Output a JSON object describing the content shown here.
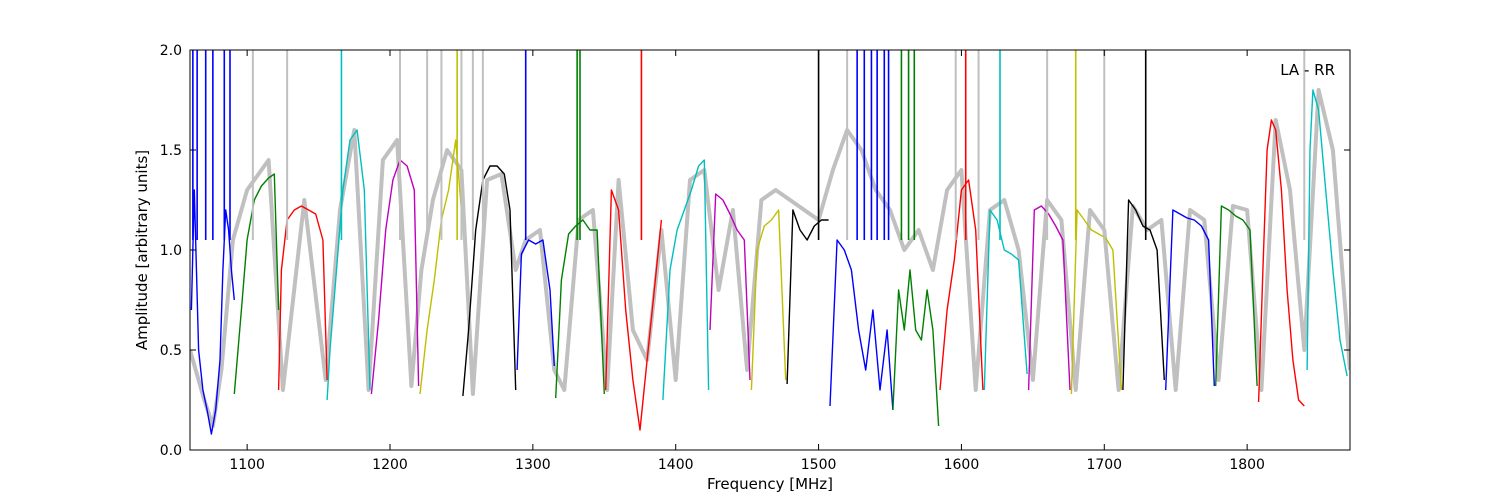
{
  "chart_data": {
    "type": "line",
    "xlabel": "Frequency [MHz]",
    "ylabel": "Amplitude [arbitrary units]",
    "annotation": "LA - RR",
    "xlim": [
      1060,
      1872
    ],
    "ylim": [
      0.0,
      2.0
    ],
    "xticks": [
      1100,
      1200,
      1300,
      1400,
      1500,
      1600,
      1700,
      1800
    ],
    "yticks": [
      0.0,
      0.5,
      1.0,
      1.5,
      2.0
    ],
    "ytick_labels": [
      "0.0",
      "0.5",
      "1.0",
      "1.5",
      "2.0"
    ],
    "grid": false,
    "background": {
      "color": "#c0c0c0",
      "x": [
        1060,
        1070,
        1076,
        1082,
        1090,
        1100,
        1115,
        1125,
        1140,
        1155,
        1165,
        1175,
        1185,
        1195,
        1205,
        1215,
        1222,
        1230,
        1240,
        1250,
        1258,
        1268,
        1278,
        1288,
        1295,
        1305,
        1315,
        1322,
        1332,
        1342,
        1352,
        1360,
        1370,
        1380,
        1390,
        1400,
        1410,
        1420,
        1430,
        1440,
        1450,
        1460,
        1470,
        1480,
        1490,
        1500,
        1510,
        1520,
        1530,
        1540,
        1550,
        1560,
        1570,
        1580,
        1590,
        1600,
        1610,
        1620,
        1630,
        1640,
        1650,
        1660,
        1670,
        1680,
        1690,
        1700,
        1710,
        1720,
        1730,
        1740,
        1750,
        1760,
        1770,
        1780,
        1790,
        1800,
        1810,
        1820,
        1830,
        1840,
        1850,
        1860,
        1872
      ],
      "y": [
        0.5,
        0.25,
        0.12,
        0.4,
        1.05,
        1.3,
        1.45,
        0.3,
        1.25,
        0.35,
        1.2,
        1.6,
        0.3,
        1.45,
        1.55,
        0.32,
        0.9,
        1.25,
        1.5,
        1.4,
        0.28,
        1.35,
        1.38,
        0.9,
        1.05,
        1.1,
        0.4,
        0.3,
        1.15,
        1.2,
        0.3,
        1.35,
        0.6,
        0.45,
        1.1,
        0.35,
        1.35,
        1.4,
        0.8,
        1.2,
        0.4,
        1.25,
        1.3,
        1.25,
        1.2,
        1.15,
        1.4,
        1.6,
        1.5,
        1.3,
        1.2,
        1.0,
        1.1,
        0.9,
        1.3,
        1.4,
        0.3,
        1.2,
        1.25,
        1.0,
        0.35,
        1.25,
        1.15,
        0.3,
        1.2,
        1.1,
        0.3,
        1.22,
        1.1,
        1.15,
        0.3,
        1.2,
        1.15,
        0.35,
        1.22,
        1.2,
        0.3,
        1.65,
        1.3,
        0.5,
        1.8,
        1.5,
        0.4
      ]
    },
    "series": [
      {
        "color": "#0000ff",
        "x": [
          1061,
          1063,
          1066,
          1069,
          1072,
          1075,
          1078,
          1081,
          1083,
          1085,
          1087,
          1089,
          1091
        ],
        "y": [
          0.7,
          1.3,
          0.5,
          0.3,
          0.2,
          0.08,
          0.2,
          0.45,
          0.9,
          1.2,
          1.1,
          0.9,
          0.75
        ]
      },
      {
        "color": "#008000",
        "x": [
          1091,
          1096,
          1100,
          1105,
          1110,
          1115,
          1119,
          1122
        ],
        "y": [
          0.28,
          0.7,
          1.05,
          1.25,
          1.32,
          1.36,
          1.38,
          0.7
        ]
      },
      {
        "color": "#ff0000",
        "x": [
          1122,
          1124,
          1128,
          1133,
          1138,
          1143,
          1148,
          1153,
          1156
        ],
        "y": [
          0.3,
          0.9,
          1.15,
          1.2,
          1.22,
          1.2,
          1.18,
          1.05,
          0.35
        ]
      },
      {
        "color": "#00bfbf",
        "x": [
          1156,
          1158,
          1162,
          1167,
          1172,
          1177,
          1182,
          1186
        ],
        "y": [
          0.25,
          0.5,
          0.85,
          1.3,
          1.55,
          1.6,
          1.3,
          0.3
        ]
      },
      {
        "color": "#bf00bf",
        "x": [
          1187,
          1192,
          1197,
          1202,
          1207,
          1212,
          1217,
          1220
        ],
        "y": [
          0.28,
          0.65,
          1.1,
          1.35,
          1.45,
          1.42,
          1.3,
          0.32
        ]
      },
      {
        "color": "#bfbf00",
        "x": [
          1221,
          1226,
          1231,
          1236,
          1241,
          1246,
          1250
        ],
        "y": [
          0.28,
          0.6,
          0.85,
          1.15,
          1.3,
          1.55,
          1.2
        ]
      },
      {
        "color": "#000000",
        "x": [
          1251,
          1255,
          1260,
          1265,
          1270,
          1275,
          1280,
          1284,
          1288
        ],
        "y": [
          0.27,
          0.6,
          1.1,
          1.35,
          1.42,
          1.42,
          1.38,
          1.2,
          0.3
        ]
      },
      {
        "color": "#0000ff",
        "x": [
          1289,
          1292,
          1297,
          1302,
          1307,
          1312,
          1315
        ],
        "y": [
          0.4,
          0.98,
          1.05,
          1.03,
          1.05,
          0.8,
          0.42
        ]
      },
      {
        "color": "#008000",
        "x": [
          1316,
          1320,
          1325,
          1330,
          1335,
          1340,
          1345,
          1350
        ],
        "y": [
          0.26,
          0.85,
          1.08,
          1.12,
          1.15,
          1.1,
          1.1,
          0.28
        ]
      },
      {
        "color": "#ff0000",
        "x": [
          1351,
          1355,
          1360,
          1365,
          1370,
          1375,
          1380,
          1385,
          1390
        ],
        "y": [
          0.3,
          1.3,
          1.2,
          0.7,
          0.35,
          0.1,
          0.45,
          0.8,
          1.15
        ]
      },
      {
        "color": "#00bfbf",
        "x": [
          1391,
          1396,
          1401,
          1406,
          1411,
          1416,
          1420,
          1423
        ],
        "y": [
          0.25,
          0.9,
          1.1,
          1.2,
          1.3,
          1.42,
          1.45,
          0.3
        ]
      },
      {
        "color": "#bf00bf",
        "x": [
          1424,
          1428,
          1433,
          1438,
          1443,
          1448,
          1452
        ],
        "y": [
          0.6,
          1.28,
          1.25,
          1.18,
          1.1,
          1.05,
          0.35
        ]
      },
      {
        "color": "#bfbf00",
        "x": [
          1453,
          1457,
          1462,
          1467,
          1472,
          1477
        ],
        "y": [
          0.3,
          1.0,
          1.12,
          1.15,
          1.2,
          0.35
        ]
      },
      {
        "color": "#000000",
        "x": [
          1478,
          1482,
          1487,
          1492,
          1497,
          1502,
          1507
        ],
        "y": [
          0.33,
          1.2,
          1.1,
          1.05,
          1.12,
          1.15,
          1.15
        ]
      },
      {
        "color": "#0000ff",
        "x": [
          1508,
          1513,
          1518,
          1523,
          1528,
          1533,
          1538,
          1543,
          1548,
          1552
        ],
        "y": [
          0.22,
          1.05,
          1.0,
          0.9,
          0.6,
          0.4,
          0.7,
          0.3,
          0.6,
          0.2
        ]
      },
      {
        "color": "#008000",
        "x": [
          1552,
          1556,
          1560,
          1564,
          1568,
          1572,
          1576,
          1580,
          1584
        ],
        "y": [
          0.2,
          0.8,
          0.6,
          0.9,
          0.6,
          0.55,
          0.8,
          0.6,
          0.12
        ]
      },
      {
        "color": "#ff0000",
        "x": [
          1585,
          1590,
          1595,
          1600,
          1605,
          1610,
          1615
        ],
        "y": [
          0.3,
          0.7,
          0.95,
          1.3,
          1.35,
          1.1,
          0.3
        ]
      },
      {
        "color": "#00bfbf",
        "x": [
          1616,
          1620,
          1625,
          1630,
          1635,
          1640,
          1646
        ],
        "y": [
          0.3,
          1.2,
          1.15,
          1.0,
          0.98,
          0.95,
          0.38
        ]
      },
      {
        "color": "#bf00bf",
        "x": [
          1647,
          1651,
          1656,
          1661,
          1666,
          1671,
          1676
        ],
        "y": [
          0.3,
          1.2,
          1.22,
          1.18,
          1.12,
          1.05,
          0.3
        ]
      },
      {
        "color": "#bfbf00",
        "x": [
          1677,
          1681,
          1686,
          1691,
          1696,
          1701,
          1706,
          1712
        ],
        "y": [
          0.28,
          1.2,
          1.15,
          1.1,
          1.08,
          1.06,
          1.0,
          0.3
        ]
      },
      {
        "color": "#000000",
        "x": [
          1713,
          1717,
          1722,
          1727,
          1732,
          1737,
          1742
        ],
        "y": [
          0.3,
          1.25,
          1.2,
          1.12,
          1.1,
          1.0,
          0.35
        ]
      },
      {
        "color": "#0000ff",
        "x": [
          1743,
          1748,
          1753,
          1758,
          1763,
          1768,
          1773,
          1777
        ],
        "y": [
          0.3,
          1.2,
          1.18,
          1.16,
          1.15,
          1.12,
          1.05,
          0.32
        ]
      },
      {
        "color": "#008000",
        "x": [
          1778,
          1782,
          1787,
          1792,
          1797,
          1802,
          1807
        ],
        "y": [
          0.32,
          1.22,
          1.2,
          1.17,
          1.15,
          1.1,
          0.32
        ]
      },
      {
        "color": "#ff0000",
        "x": [
          1808,
          1811,
          1814,
          1817,
          1820,
          1824,
          1828,
          1832,
          1836,
          1840
        ],
        "y": [
          0.24,
          0.9,
          1.5,
          1.65,
          1.6,
          1.3,
          0.8,
          0.45,
          0.25,
          0.22
        ]
      },
      {
        "color": "#00bfbf",
        "x": [
          1842,
          1844,
          1846,
          1850,
          1855,
          1860,
          1865,
          1870
        ],
        "y": [
          0.4,
          1.5,
          1.8,
          1.7,
          1.3,
          0.9,
          0.55,
          0.37
        ]
      }
    ],
    "spikes": [
      {
        "color": "#0000ff",
        "x": [
          1062,
          1065,
          1071,
          1076,
          1084,
          1088,
          1295,
          1527,
          1532,
          1537,
          1541,
          1546,
          1549
        ]
      },
      {
        "color": "#00bfbf",
        "x": [
          1166,
          1627
        ]
      },
      {
        "color": "#bfbf00",
        "x": [
          1247,
          1680
        ]
      },
      {
        "color": "#008000",
        "x": [
          1331,
          1333,
          1558,
          1563,
          1567
        ]
      },
      {
        "color": "#ff0000",
        "x": [
          1376,
          1603
        ]
      },
      {
        "color": "#000000",
        "x": [
          1500,
          1729
        ]
      },
      {
        "color": "#c0c0c0",
        "x": [
          1104,
          1128,
          1207,
          1226,
          1236,
          1250,
          1258,
          1265,
          1520,
          1596,
          1612,
          1660,
          1700,
          1840
        ]
      }
    ]
  }
}
